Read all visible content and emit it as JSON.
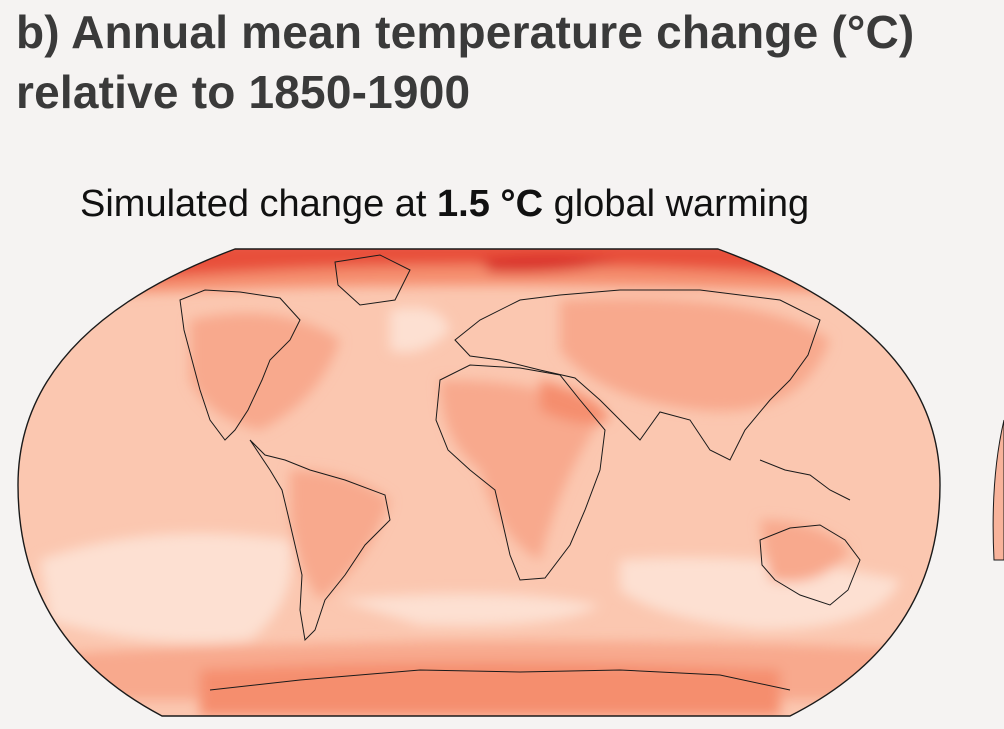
{
  "title": {
    "line1": "b) Annual mean temperature change (°C)",
    "line2": "relative to 1850-1900"
  },
  "subtitle": {
    "prefix": "Simulated change at ",
    "level": "1.5 °C",
    "suffix": " global warming"
  },
  "map": {
    "projection": "robinson",
    "variable": "annual mean temperature change (°C)",
    "colors": {
      "ocean_light": "#fde0d2",
      "ocean_base": "#fbc7b0",
      "land_warm": "#f8a98d",
      "warmer": "#f58e6e",
      "arctic": "#e8503a",
      "arctic_peak": "#d9302a",
      "outline": "#1a1a1a",
      "background": "#f5f3f2"
    }
  }
}
